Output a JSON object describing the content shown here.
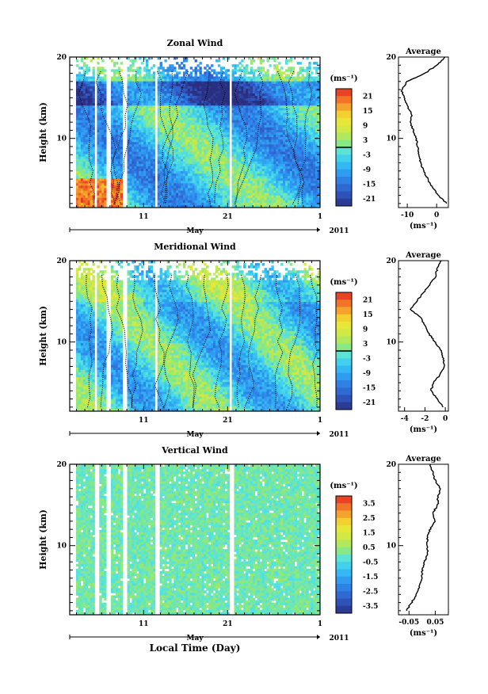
{
  "figure": {
    "xlabel": "Local Time (Day)",
    "month_label": "May",
    "year_label": "2011",
    "x_ticks": [
      "11",
      "21",
      "1"
    ],
    "y_ticks": [
      "20",
      "10"
    ],
    "ylabel": "Height (km)",
    "colorbar_unit": "(ms⁻¹)",
    "average_title": "Average",
    "average_unit": "(ms⁻¹)"
  },
  "chart_data": [
    {
      "type": "heatmap",
      "title": "Zonal Wind",
      "ylabel": "Height (km)",
      "ylim": [
        1.5,
        20
      ],
      "colorbar": {
        "unit": "(ms⁻¹)",
        "range": [
          -24,
          24
        ],
        "tick_labels": [
          "21",
          "15",
          "9",
          "3",
          "-3",
          "-9",
          "-15",
          "-21"
        ]
      },
      "zero_contour": true,
      "profile": {
        "title": "Average",
        "xlabel": "(ms⁻¹)",
        "xlim": [
          -13,
          4
        ],
        "x_tick_labels": [
          "-10",
          "0"
        ],
        "x_tick_values": [
          -10,
          0
        ],
        "height": [
          2,
          3,
          4,
          5,
          6,
          7,
          8,
          9,
          10,
          11,
          12,
          13,
          14,
          15,
          16,
          17,
          18,
          19,
          20
        ],
        "values": [
          3.5,
          0.5,
          -1.5,
          -3,
          -4.5,
          -5.5,
          -6,
          -6.5,
          -7,
          -8,
          -9,
          -8.5,
          -10,
          -11,
          -12,
          -10,
          -4,
          0,
          3
        ]
      }
    },
    {
      "type": "heatmap",
      "title": "Meridional Wind",
      "ylabel": "Height (km)",
      "ylim": [
        1.5,
        20
      ],
      "colorbar": {
        "unit": "(ms⁻¹)",
        "range": [
          -24,
          24
        ],
        "tick_labels": [
          "21",
          "15",
          "9",
          "3",
          "-3",
          "-9",
          "-15",
          "-21"
        ]
      },
      "zero_contour": true,
      "profile": {
        "title": "Average",
        "xlabel": "(ms⁻¹)",
        "xlim": [
          -4.6,
          0.3
        ],
        "x_tick_labels": [
          "-4",
          "-2",
          "0"
        ],
        "x_tick_values": [
          -4,
          -2,
          0
        ],
        "height": [
          2,
          3,
          4,
          5,
          6,
          7,
          8,
          9,
          10,
          11,
          12,
          13,
          14,
          15,
          16,
          17,
          18,
          19,
          20
        ],
        "values": [
          -0.2,
          -0.8,
          -1.4,
          -1.2,
          -0.5,
          -0.1,
          -0.2,
          -0.4,
          -1.0,
          -1.6,
          -2.0,
          -2.4,
          -3.4,
          -2.8,
          -2.2,
          -1.6,
          -1.0,
          -0.8,
          -0.4
        ]
      }
    },
    {
      "type": "heatmap",
      "title": "Vertical Wind",
      "ylabel": "Height (km)",
      "ylim": [
        1.5,
        20
      ],
      "colorbar": {
        "unit": "(ms⁻¹)",
        "range": [
          -4,
          4
        ],
        "tick_labels": [
          "3.5",
          "2.5",
          "1.5",
          "0.5",
          "-0.5",
          "-1.5",
          "-2.5",
          "-3.5"
        ]
      },
      "zero_contour": false,
      "profile": {
        "title": "Average",
        "xlabel": "(ms⁻¹)",
        "xlim": [
          -0.09,
          0.1
        ],
        "x_tick_labels": [
          "-0.05",
          "0.05"
        ],
        "x_tick_values": [
          -0.05,
          0.05
        ],
        "height": [
          2,
          3,
          4,
          5,
          6,
          7,
          8,
          9,
          10,
          11,
          12,
          13,
          14,
          15,
          16,
          17,
          18,
          19,
          20
        ],
        "values": [
          -0.06,
          -0.04,
          -0.02,
          -0.01,
          0.0,
          0.0,
          0.01,
          0.02,
          0.02,
          0.02,
          0.03,
          0.05,
          0.04,
          0.06,
          0.06,
          0.07,
          0.05,
          0.04,
          0.03
        ]
      }
    }
  ]
}
